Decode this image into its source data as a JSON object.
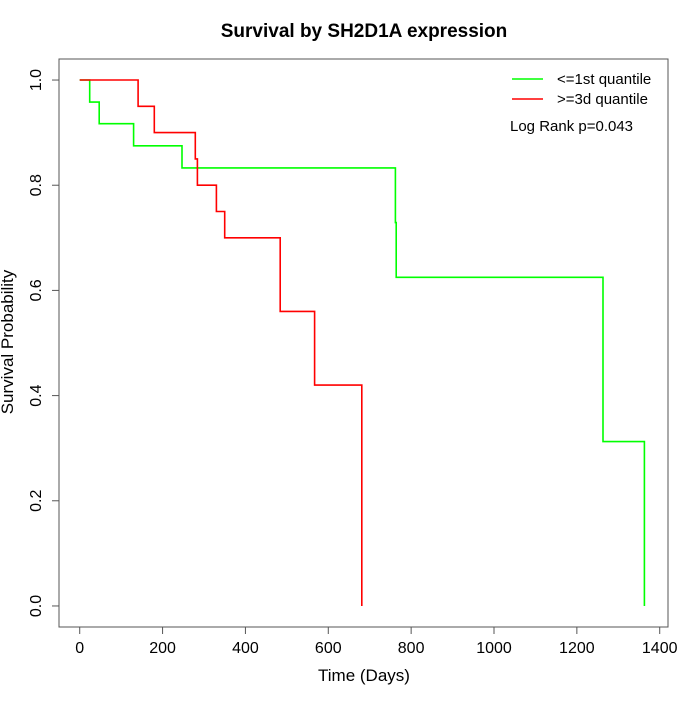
{
  "chart_data": {
    "type": "line",
    "title": "Survival by SH2D1A expression",
    "xlabel": "Time (Days)",
    "ylabel": "Survival Probability",
    "xlim": [
      -50,
      1420
    ],
    "ylim": [
      -0.04,
      1.04
    ],
    "x_ticks": [
      0,
      200,
      400,
      600,
      800,
      1000,
      1200,
      1400
    ],
    "y_ticks": [
      0.0,
      0.2,
      0.4,
      0.6,
      0.8,
      1.0
    ],
    "x_tick_labels": [
      "0",
      "200",
      "400",
      "600",
      "800",
      "1000",
      "1200",
      "1400"
    ],
    "y_tick_labels": [
      "0.0",
      "0.2",
      "0.4",
      "0.6",
      "0.8",
      "1.0"
    ],
    "grid": false,
    "legend_position": "top-right",
    "annotation": "Log Rank p=0.043",
    "series": [
      {
        "name": "<=1st quantile",
        "color": "#00ff00",
        "step": true,
        "points": [
          [
            0,
            1.0
          ],
          [
            24,
            1.0
          ],
          [
            24,
            0.958
          ],
          [
            47,
            0.958
          ],
          [
            47,
            0.917
          ],
          [
            130,
            0.917
          ],
          [
            130,
            0.875
          ],
          [
            247,
            0.875
          ],
          [
            247,
            0.833
          ],
          [
            762,
            0.833
          ],
          [
            762,
            0.729
          ],
          [
            764,
            0.729
          ],
          [
            764,
            0.625
          ],
          [
            1263,
            0.625
          ],
          [
            1263,
            0.3125
          ],
          [
            1363,
            0.3125
          ],
          [
            1363,
            0.0
          ]
        ]
      },
      {
        "name": ">=3d quantile",
        "color": "#ff0000",
        "step": true,
        "points": [
          [
            0,
            1.0
          ],
          [
            141,
            1.0
          ],
          [
            141,
            0.95
          ],
          [
            180,
            0.95
          ],
          [
            180,
            0.9
          ],
          [
            279,
            0.9
          ],
          [
            279,
            0.85
          ],
          [
            284,
            0.85
          ],
          [
            284,
            0.8
          ],
          [
            330,
            0.8
          ],
          [
            330,
            0.75
          ],
          [
            350,
            0.75
          ],
          [
            350,
            0.7
          ],
          [
            484,
            0.7
          ],
          [
            484,
            0.56
          ],
          [
            567,
            0.56
          ],
          [
            567,
            0.42
          ],
          [
            681,
            0.42
          ],
          [
            681,
            0.0
          ]
        ]
      }
    ]
  }
}
